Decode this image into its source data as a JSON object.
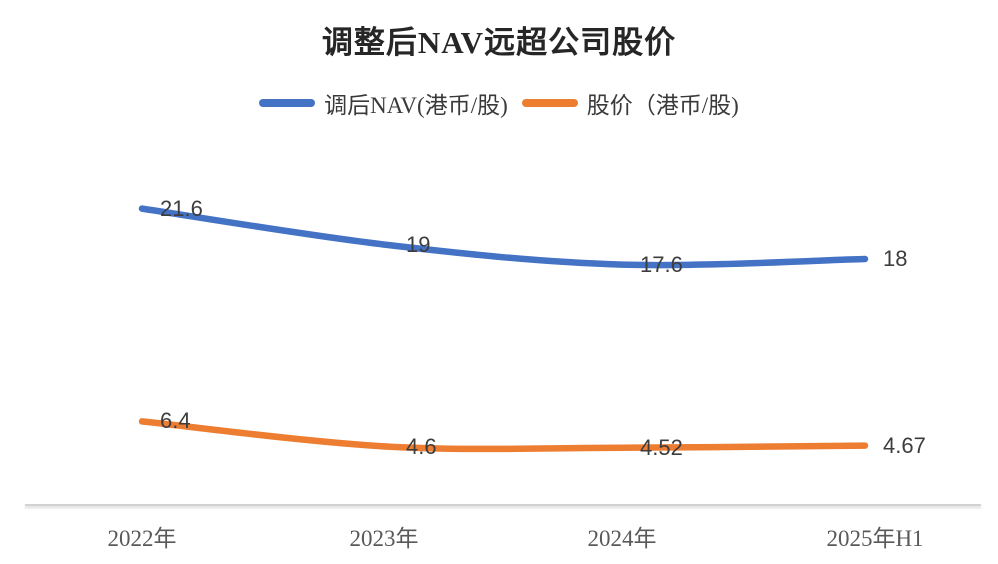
{
  "page": {
    "background": "#ffffff"
  },
  "chart": {
    "title": "调整后NAV远超公司股价"
  },
  "chart_data": {
    "type": "line",
    "title": "调整后NAV远超公司股价",
    "categories": [
      "2022年",
      "2023年",
      "2024年",
      "2025年H1"
    ],
    "series": [
      {
        "name": "调后NAV(港币/股)",
        "color": "#4472C4",
        "values": [
          21.6,
          19,
          17.6,
          18
        ],
        "labels": [
          "21.6",
          "19",
          "17.6",
          "18"
        ]
      },
      {
        "name": "股价（港币/股)",
        "color": "#ED7D31",
        "values": [
          6.4,
          4.6,
          4.52,
          4.67
        ],
        "labels": [
          "6.4",
          "4.6",
          "4.52",
          "4.67"
        ]
      }
    ],
    "xlabel": "",
    "ylabel": "",
    "ylim": [
      0,
      25
    ],
    "grid": false,
    "smooth": true,
    "legend_position": "top",
    "data_labels": "right",
    "text_colors": {
      "title": "#262626",
      "data_label": "#3d3d3d",
      "tick_label": "#595959"
    }
  }
}
